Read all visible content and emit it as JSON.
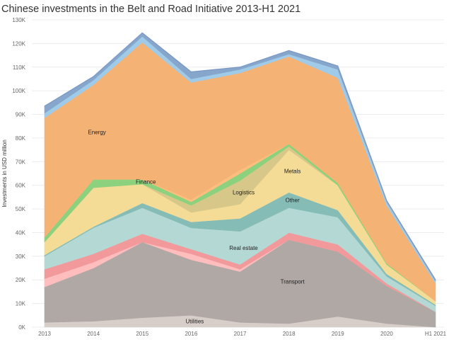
{
  "title": "Chinese investments in the Belt and Road Initiative 2013-H1 2021",
  "chart_data": {
    "type": "area",
    "stacked": true,
    "title": "Chinese investments in the Belt and Road Initiative 2013-H1 2021",
    "xlabel": "",
    "ylabel": "Investments in USD million",
    "categories": [
      "2013",
      "2014",
      "2015",
      "2016",
      "2017",
      "2018",
      "2019",
      "2020",
      "H1 2021"
    ],
    "ylim": [
      0,
      130000
    ],
    "yticks": [
      0,
      10000,
      20000,
      30000,
      40000,
      50000,
      60000,
      70000,
      80000,
      90000,
      100000,
      110000,
      120000,
      130000
    ],
    "ytick_labels": [
      "0K",
      "10K",
      "20K",
      "30K",
      "40K",
      "50K",
      "60K",
      "70K",
      "80K",
      "90K",
      "100K",
      "110K",
      "120K",
      "130K"
    ],
    "grid": true,
    "series": [
      {
        "name": "Utilities",
        "color": "#d7cec9",
        "label_at": 3,
        "values": [
          2000,
          2500,
          4000,
          5000,
          2000,
          1500,
          4500,
          1500,
          0
        ]
      },
      {
        "name": "Transport",
        "color": "#b0a8a4",
        "label_at": 5,
        "values": [
          15000,
          22500,
          32000,
          23500,
          21500,
          35500,
          27500,
          16000,
          6500
        ]
      },
      {
        "name": "",
        "color": "#ffbdbd",
        "values": [
          3500,
          2500,
          0,
          2500,
          1000,
          0,
          0,
          0,
          0
        ]
      },
      {
        "name": "",
        "color": "#f1999b",
        "values": [
          4000,
          3500,
          3500,
          2000,
          2000,
          3000,
          3000,
          1000,
          0
        ]
      },
      {
        "name": "Real estate",
        "color": "#b4d9d5",
        "label_at": 4,
        "values": [
          5500,
          11000,
          11000,
          9000,
          14000,
          10500,
          11500,
          3000,
          2500
        ]
      },
      {
        "name": "Other",
        "color": "#86bcb6",
        "label_at": 5,
        "values": [
          500,
          500,
          2000,
          2500,
          5500,
          6500,
          3000,
          1000,
          500
        ]
      },
      {
        "name": "Metals",
        "color": "#f4dc96",
        "label_at": 5,
        "values": [
          5500,
          16500,
          8000,
          4000,
          6000,
          18000,
          10500,
          4000,
          1500
        ]
      },
      {
        "name": "Logistics",
        "color": "#d7c88a",
        "label_at": 4,
        "values": [
          0,
          0,
          0,
          3000,
          10000,
          1500,
          0,
          0,
          0
        ]
      },
      {
        "name": "Finance",
        "color": "#8cd17d",
        "label_at": 2,
        "values": [
          2000,
          3500,
          2000,
          1500,
          3000,
          1000,
          1000,
          500,
          0
        ]
      },
      {
        "name": "",
        "color": "#ffbe7d",
        "values": [
          0,
          0,
          0,
          1000,
          1500,
          0,
          0,
          0,
          0
        ]
      },
      {
        "name": "Energy",
        "color": "#f5b275",
        "label_at": 1,
        "values": [
          50500,
          40000,
          58000,
          49500,
          41000,
          37000,
          44500,
          24500,
          7500
        ]
      },
      {
        "name": "",
        "color": "#a0cbe8",
        "values": [
          2000,
          2000,
          2500,
          1500,
          1500,
          1000,
          3500,
          1500,
          1000
        ]
      },
      {
        "name": "",
        "color": "#86a6cc",
        "values": [
          3000,
          1500,
          1500,
          3000,
          1000,
          1500,
          1500,
          500,
          500
        ]
      }
    ]
  }
}
